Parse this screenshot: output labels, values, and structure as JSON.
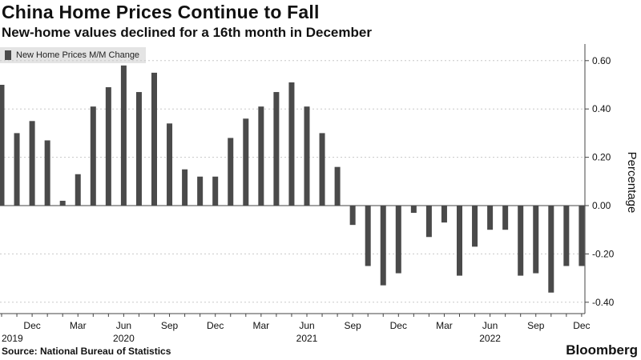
{
  "header": {
    "title": "China Home Prices Continue to Fall",
    "subtitle": "New-home values declined for a 16th month in December"
  },
  "footer": {
    "source": "Source: National Bureau of Statistics",
    "brand": "Bloomberg"
  },
  "colors": {
    "bar": "#4a4a4a",
    "grid": "#c8c8c8",
    "zero_line": "#444444",
    "legend_bg": "#e4e4e4"
  },
  "chart_data": {
    "type": "bar",
    "series": [
      {
        "name": "New Home Prices M/M Change",
        "values": [
          0.5,
          0.3,
          0.35,
          0.27,
          0.02,
          0.13,
          0.41,
          0.49,
          0.58,
          0.47,
          0.55,
          0.34,
          0.15,
          0.12,
          0.12,
          0.28,
          0.36,
          0.41,
          0.47,
          0.51,
          0.41,
          0.3,
          0.16,
          -0.08,
          -0.25,
          -0.33,
          -0.28,
          -0.03,
          -0.13,
          -0.07,
          -0.29,
          -0.17,
          -0.1,
          -0.1,
          -0.29,
          -0.28,
          -0.36,
          -0.25,
          -0.25
        ]
      }
    ],
    "months": [
      "Oct 2019",
      "Nov 2019",
      "Dec 2019",
      "Jan 2020",
      "Feb 2020",
      "Mar 2020",
      "Apr 2020",
      "May 2020",
      "Jun 2020",
      "Jul 2020",
      "Aug 2020",
      "Sep 2020",
      "Oct 2020",
      "Nov 2020",
      "Dec 2020",
      "Jan 2021",
      "Feb 2021",
      "Mar 2021",
      "Apr 2021",
      "May 2021",
      "Jun 2021",
      "Jul 2021",
      "Aug 2021",
      "Sep 2021",
      "Oct 2021",
      "Nov 2021",
      "Dec 2021",
      "Jan 2022",
      "Feb 2022",
      "Mar 2022",
      "Apr 2022",
      "May 2022",
      "Jun 2022",
      "Jul 2022",
      "Aug 2022",
      "Sep 2022",
      "Oct 2022",
      "Nov 2022",
      "Dec 2022"
    ],
    "x_tick_labels": [
      {
        "label": "Dec",
        "index": 2
      },
      {
        "label": "Mar",
        "index": 5
      },
      {
        "label": "Jun",
        "index": 8
      },
      {
        "label": "Sep",
        "index": 11
      },
      {
        "label": "Dec",
        "index": 14
      },
      {
        "label": "Mar",
        "index": 17
      },
      {
        "label": "Jun",
        "index": 20
      },
      {
        "label": "Sep",
        "index": 23
      },
      {
        "label": "Dec",
        "index": 26
      },
      {
        "label": "Mar",
        "index": 29
      },
      {
        "label": "Jun",
        "index": 32
      },
      {
        "label": "Sep",
        "index": 35
      },
      {
        "label": "Dec",
        "index": 38
      }
    ],
    "year_labels": [
      {
        "label": "2019",
        "index": 0
      },
      {
        "label": "2020",
        "index": 8
      },
      {
        "label": "2021",
        "index": 20
      },
      {
        "label": "2022",
        "index": 32
      }
    ],
    "y_ticks": [
      "0.60",
      "0.40",
      "0.20",
      "0.00",
      "-0.20",
      "-0.40"
    ],
    "ylabel": "Percentage",
    "ylim": [
      -0.42,
      0.62
    ],
    "grid": "horizontal dashed",
    "legend": "top-left"
  }
}
